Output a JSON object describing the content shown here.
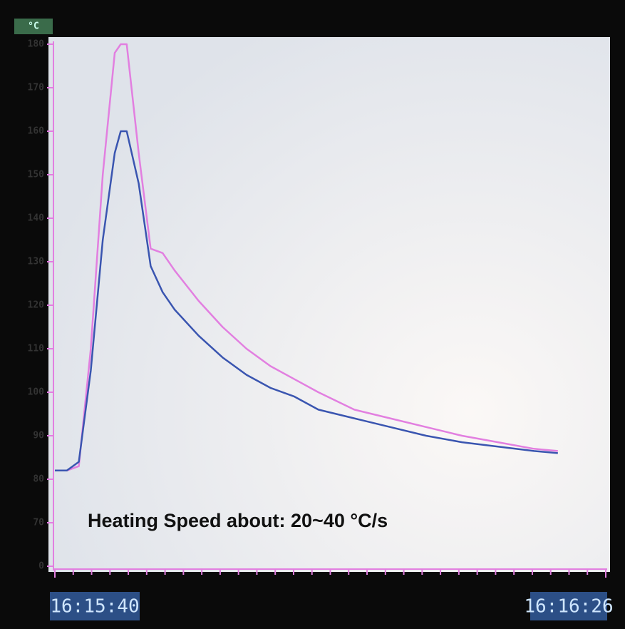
{
  "chart_data": {
    "type": "line",
    "y_label": "°C",
    "annotation": "Heating Speed about: 20~40 °C/s",
    "x": [
      0,
      1,
      2,
      3,
      4,
      5,
      5.5,
      6,
      7,
      8,
      9,
      10,
      12,
      14,
      16,
      18,
      20,
      22,
      25,
      28,
      31,
      34,
      37,
      40,
      42
    ],
    "xlim": [
      0,
      46
    ],
    "xticks": [
      {
        "value": 0,
        "label": "16:15:40"
      },
      {
        "value": 46,
        "label": "16:16:26"
      }
    ],
    "ylim": [
      60,
      180
    ],
    "yticks": [
      {
        "value": 60,
        "label": "0"
      },
      70,
      80,
      90,
      100,
      110,
      120,
      130,
      140,
      150,
      160,
      170,
      180
    ],
    "series": [
      {
        "color": "#e27fe0",
        "values": [
          82,
          82,
          83,
          110,
          150,
          178,
          180,
          180,
          155,
          133,
          132,
          128,
          121,
          115,
          110,
          106,
          103,
          100,
          96,
          94,
          92,
          90,
          88.5,
          87,
          86.5
        ]
      },
      {
        "color": "#3a55b0",
        "values": [
          82,
          82,
          84,
          105,
          135,
          155,
          160,
          160,
          148,
          129,
          123,
          119,
          113,
          108,
          104,
          101,
          99,
          96,
          94,
          92,
          90,
          88.5,
          87.5,
          86.5,
          86
        ]
      }
    ]
  }
}
